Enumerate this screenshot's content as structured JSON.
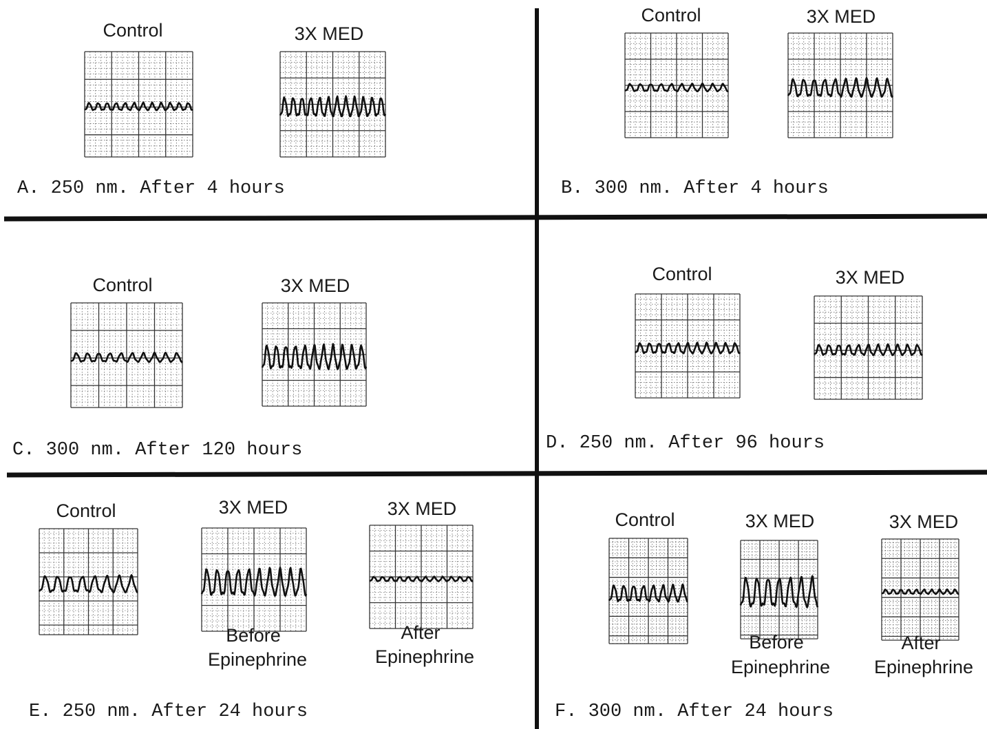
{
  "panels": [
    {
      "caption": "A. 250 nm. After 4 hours",
      "traces": [
        {
          "label": "Control"
        },
        {
          "label": "3X MED"
        }
      ]
    },
    {
      "caption": "B. 300 nm. After 4 hours",
      "traces": [
        {
          "label": "Control"
        },
        {
          "label": "3X MED"
        }
      ]
    },
    {
      "caption": "C. 300 nm. After 120 hours",
      "traces": [
        {
          "label": "Control"
        },
        {
          "label": "3X MED"
        }
      ]
    },
    {
      "caption": "D. 250 nm. After 96 hours",
      "traces": [
        {
          "label": "Control"
        },
        {
          "label": "3X MED"
        }
      ]
    },
    {
      "caption": "E. 250 nm. After 24 hours",
      "traces": [
        {
          "label": "Control"
        },
        {
          "label": "3X MED",
          "note": [
            "Before",
            "Epinephrine"
          ]
        },
        {
          "label": "3X MED",
          "note": [
            "After",
            "Epinephrine"
          ]
        }
      ]
    },
    {
      "caption": "F. 300 nm. After 24 hours",
      "traces": [
        {
          "label": "Control"
        },
        {
          "label": "3X MED",
          "note": [
            "Before",
            "Epinephrine"
          ]
        },
        {
          "label": "3X MED",
          "note": [
            "After",
            "Epinephrine"
          ]
        }
      ]
    }
  ]
}
